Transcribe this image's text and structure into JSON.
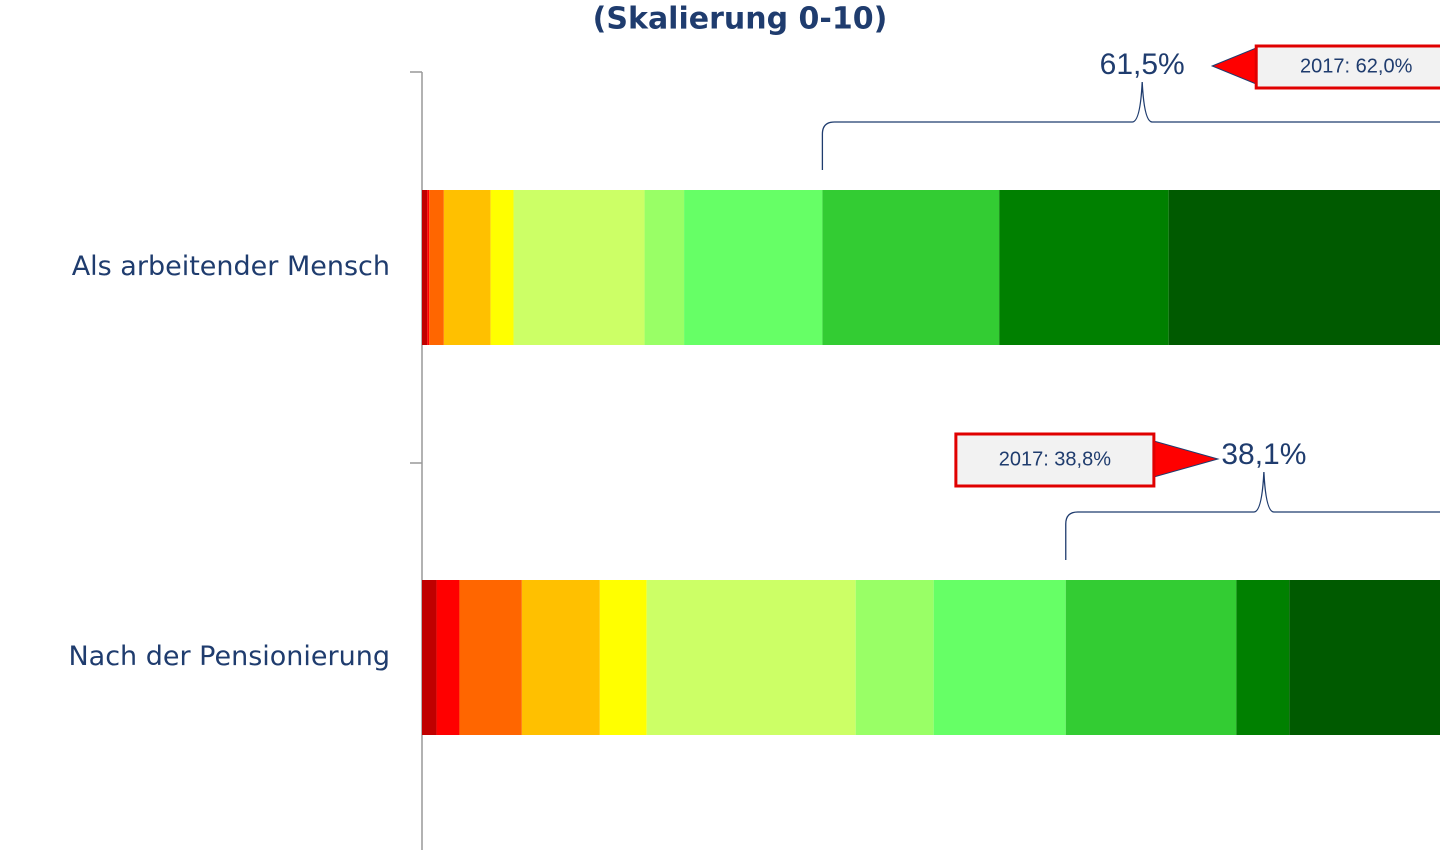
{
  "chart_data": {
    "type": "stacked_barh",
    "title": "(Skalierung 0-10)",
    "categories": [
      "Als arbeitender Mensch",
      "Nach der Pensionierung"
    ],
    "xlim": [
      0,
      100
    ],
    "series": [
      {
        "color": "#c00000",
        "values": [
          0.5,
          1.4
        ]
      },
      {
        "color": "#ff0000",
        "values": [
          0.2,
          2.2
        ]
      },
      {
        "color": "#ff6600",
        "values": [
          1.4,
          6.0
        ]
      },
      {
        "color": "#ffc000",
        "values": [
          4.5,
          7.5
        ]
      },
      {
        "color": "#ffff00",
        "values": [
          2.2,
          4.5
        ]
      },
      {
        "color": "#ccff66",
        "values": [
          12.6,
          20.1
        ]
      },
      {
        "color": "#99ff66",
        "values": [
          3.8,
          7.5
        ]
      },
      {
        "color": "#66ff66",
        "values": [
          13.3,
          12.7
        ]
      },
      {
        "color": "#33cc33",
        "values": [
          17.0,
          16.4
        ]
      },
      {
        "color": "#008000",
        "values": [
          16.3,
          5.1
        ]
      },
      {
        "color": "#005a00",
        "values": [
          28.2,
          16.6
        ]
      }
    ],
    "annotations": [
      {
        "value": 61.5,
        "label": "61,5%",
        "previous": "2017: 62,0%"
      },
      {
        "value": 38.1,
        "label": "38,1%",
        "previous": "2017: 38,8%"
      }
    ]
  }
}
